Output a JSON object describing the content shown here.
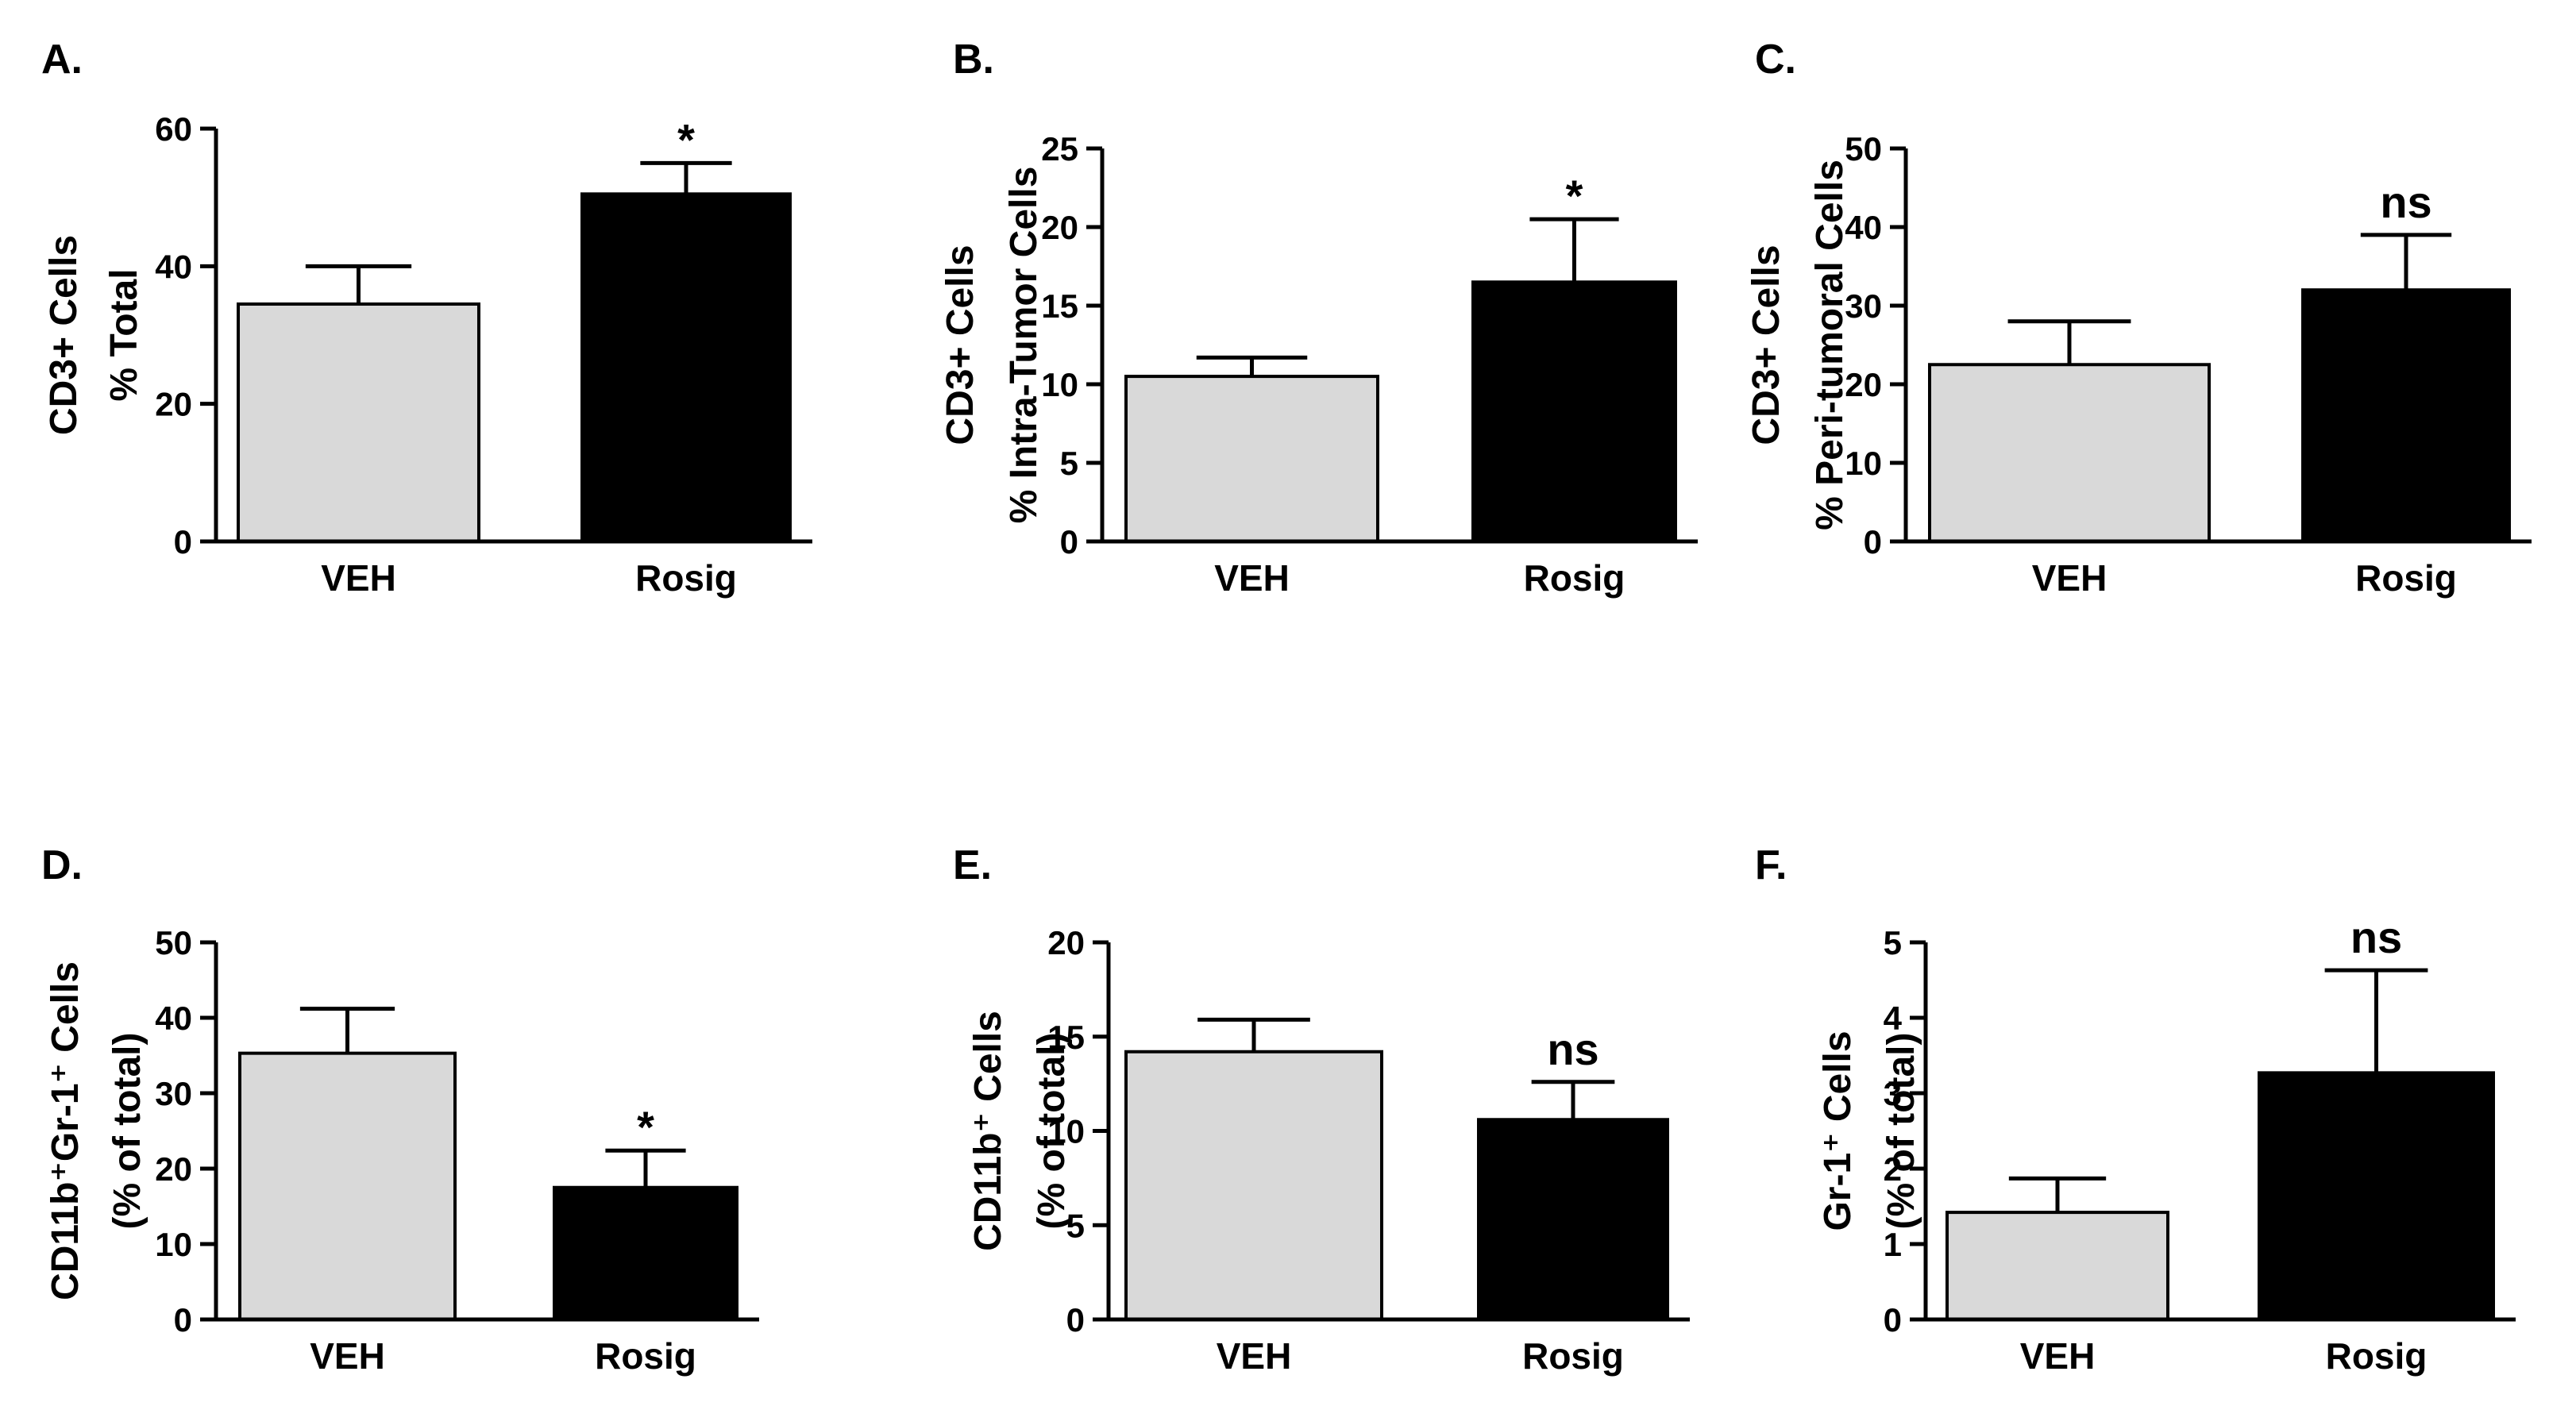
{
  "colors": {
    "veh": "#d9d9d9",
    "rosig": "#000000",
    "axis": "#000000"
  },
  "chart_data": [
    {
      "panel": "A.",
      "type": "bar",
      "categories": [
        "VEH",
        "Rosig"
      ],
      "values": [
        34.5,
        50.5
      ],
      "errors": [
        5.5,
        4.5
      ],
      "significance": [
        "",
        "*"
      ],
      "ylabel_lines": [
        "CD3+ Cells",
        "% Total"
      ],
      "ylim": [
        0,
        60
      ],
      "yticks": [
        0,
        20,
        40,
        60
      ],
      "ytick_labels": [
        "0",
        "20",
        "40",
        "60"
      ],
      "xlabel": ""
    },
    {
      "panel": "B.",
      "type": "bar",
      "categories": [
        "VEH",
        "Rosig"
      ],
      "values": [
        10.5,
        16.5
      ],
      "errors": [
        1.2,
        4.0
      ],
      "significance": [
        "",
        "*"
      ],
      "ylabel_lines": [
        "CD3+ Cells",
        "% Intra-Tumor Cells"
      ],
      "ylim": [
        0,
        25
      ],
      "yticks": [
        0,
        5,
        10,
        15,
        20,
        25
      ],
      "ytick_labels": [
        "0",
        "5",
        "10",
        "15",
        "20",
        "25"
      ],
      "xlabel": ""
    },
    {
      "panel": "C.",
      "type": "bar",
      "categories": [
        "VEH",
        "Rosig"
      ],
      "values": [
        22.5,
        32
      ],
      "errors": [
        5.5,
        7
      ],
      "significance": [
        "",
        "ns"
      ],
      "ylabel_lines": [
        "CD3+ Cells",
        "% Peri-tumoral Cells"
      ],
      "ylim": [
        0,
        50
      ],
      "yticks": [
        0,
        10,
        20,
        30,
        40,
        50
      ],
      "ytick_labels": [
        "0",
        "10",
        "20",
        "30",
        "40",
        "50"
      ],
      "xlabel": ""
    },
    {
      "panel": "D.",
      "type": "bar",
      "categories": [
        "VEH",
        "Rosig"
      ],
      "values": [
        35.3,
        17.5
      ],
      "errors": [
        5.9,
        4.9
      ],
      "significance": [
        "",
        "*"
      ],
      "ylabel_lines": [
        "CD11b⁺Gr-1⁺ Cells",
        "(% of total)"
      ],
      "ylim": [
        0,
        50
      ],
      "yticks": [
        0,
        10,
        20,
        30,
        40,
        50
      ],
      "ytick_labels": [
        "0",
        "10",
        "20",
        "30",
        "40",
        "50"
      ],
      "xlabel": ""
    },
    {
      "panel": "E.",
      "type": "bar",
      "categories": [
        "VEH",
        "Rosig"
      ],
      "values": [
        14.2,
        10.6
      ],
      "errors": [
        1.7,
        2.0
      ],
      "significance": [
        "",
        "ns"
      ],
      "ylabel_lines": [
        "CD11b⁺ Cells",
        "(% of total)"
      ],
      "ylim": [
        0,
        20
      ],
      "yticks": [
        0,
        5,
        10,
        15,
        20
      ],
      "ytick_labels": [
        "0",
        "5",
        "10",
        "15",
        "20"
      ],
      "xlabel": ""
    },
    {
      "panel": "F.",
      "type": "bar",
      "categories": [
        "VEH",
        "Rosig"
      ],
      "values": [
        1.42,
        3.27
      ],
      "errors": [
        0.45,
        1.36
      ],
      "significance": [
        "",
        "ns"
      ],
      "ylabel_lines": [
        "Gr-1⁺ Cells",
        "(% of total)"
      ],
      "ylim": [
        0,
        5
      ],
      "yticks": [
        0,
        1,
        2,
        3,
        4,
        5
      ],
      "ytick_labels": [
        "0",
        "1",
        "2",
        "3",
        "4",
        "5"
      ],
      "xlabel": ""
    }
  ]
}
